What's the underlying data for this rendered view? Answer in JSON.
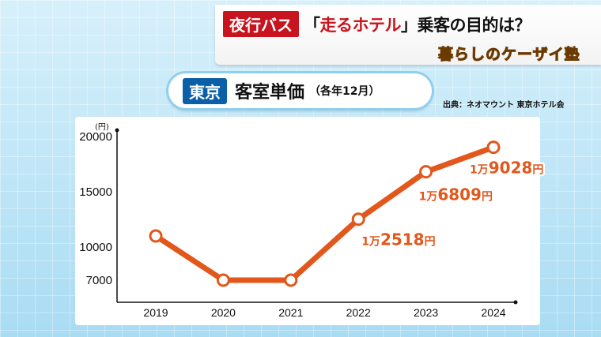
{
  "banner": {
    "tag": "夜行バス",
    "headline_open": "「",
    "headline_highlight": "走るホテル",
    "headline_close": "」乗客の目的は？",
    "show_name": "暮らしのケーザイ塾"
  },
  "title": {
    "tag": "東京",
    "main": "客室単価",
    "sub": "（各年12月）"
  },
  "source": "出典：ネオマウント 東京ホテル会",
  "colors": {
    "line": "#e1571c",
    "accent_red": "#c8141e",
    "accent_blue": "#0a5fa8"
  },
  "chart_data": {
    "type": "line",
    "unit": "(円)",
    "x": [
      "2019",
      "2020",
      "2021",
      "2022",
      "2023",
      "2024"
    ],
    "values": [
      11000,
      7000,
      7000,
      12518,
      16809,
      19028
    ],
    "yticks": [
      7000,
      10000,
      15000,
      20000
    ],
    "ylim": [
      5000,
      20000
    ],
    "data_labels": [
      {
        "index": 3,
        "prefix": "1万",
        "number": "2518",
        "suffix": "円"
      },
      {
        "index": 4,
        "prefix": "1万",
        "number": "6809",
        "suffix": "円"
      },
      {
        "index": 5,
        "prefix": "1万",
        "number": "9028",
        "suffix": "円"
      }
    ],
    "grid": false
  }
}
